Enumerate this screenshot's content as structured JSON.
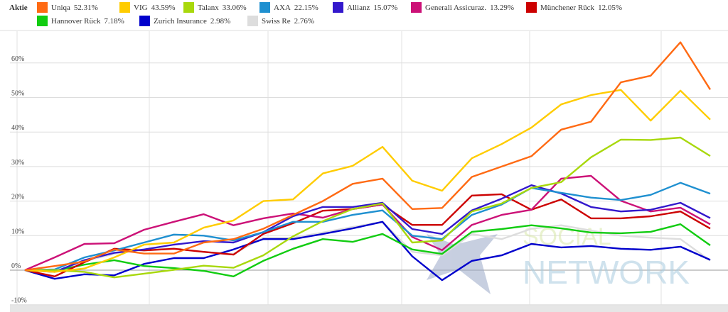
{
  "watermark": "BÖRSE SOCIAL NETWORK",
  "chart_data": {
    "type": "line",
    "title": "",
    "legend_title": "Aktie",
    "legend_position": "top",
    "xlabel": "",
    "ylabel": "",
    "ylim": [
      -10,
      70
    ],
    "y_ticks": [
      -10,
      0,
      10,
      20,
      30,
      40,
      50,
      60
    ],
    "y_tick_labels": [
      "-10%",
      "0%",
      "10%",
      "20%",
      "30%",
      "40%",
      "50%",
      "60%"
    ],
    "grid": true,
    "x": [
      0,
      1,
      2,
      3,
      4,
      5,
      6,
      7,
      8,
      9,
      10,
      11,
      12,
      13,
      14,
      15,
      16,
      17,
      18,
      19,
      20,
      21,
      22,
      23
    ],
    "series": [
      {
        "name": "Uniqa",
        "label": "52.31%",
        "color": "#ff6a13",
        "values": [
          0,
          1.2,
          2.5,
          6,
          4.8,
          4.8,
          8,
          9,
          12,
          16,
          20,
          25,
          26.5,
          17.7,
          18,
          27,
          30,
          33,
          40.7,
          43,
          54.4,
          56.3,
          66,
          52.31
        ]
      },
      {
        "name": "VIG",
        "label": "43.59%",
        "color": "#ffcc00",
        "values": [
          0,
          -0.5,
          0.5,
          3.7,
          7.4,
          8,
          12.3,
          14.4,
          20,
          20.5,
          28,
          30.2,
          35.7,
          25.9,
          23,
          32.4,
          36.5,
          41.3,
          48,
          50.7,
          52.2,
          43.3,
          52,
          43.59
        ]
      },
      {
        "name": "Talanx",
        "label": "33.06%",
        "color": "#a8d80c",
        "values": [
          0,
          0,
          -0.5,
          -2.1,
          -1,
          0.1,
          1.3,
          0.7,
          4.3,
          9.8,
          14.2,
          17.7,
          19.3,
          8,
          8.6,
          17,
          19.3,
          23.8,
          25.5,
          32.7,
          37.8,
          37.7,
          38.4,
          33.06
        ]
      },
      {
        "name": "AXA",
        "label": "22.15%",
        "color": "#1f90d0",
        "values": [
          0,
          0.2,
          3.7,
          5.7,
          8,
          10.3,
          10,
          8.6,
          11,
          14,
          14,
          16,
          17.3,
          10,
          9,
          16,
          19,
          23.8,
          22.4,
          21,
          20.3,
          21.8,
          25.3,
          22.15
        ]
      },
      {
        "name": "Allianz",
        "label": "15.07%",
        "color": "#3318cc",
        "values": [
          0,
          -0.5,
          2.9,
          5,
          6,
          7.4,
          8.4,
          8,
          11,
          15.6,
          18.3,
          18.3,
          19.5,
          11.9,
          10.5,
          17.3,
          20.7,
          24.6,
          22.2,
          18.3,
          17,
          17.5,
          19.5,
          15.07
        ]
      },
      {
        "name": "Generali Assicuraz.",
        "label": "13.29%",
        "color": "#cc1177",
        "values": [
          0,
          3.7,
          7.6,
          7.8,
          11.7,
          14,
          16.2,
          13,
          15,
          16.4,
          15.2,
          17.7,
          19,
          9.6,
          5.8,
          13.1,
          16,
          17.5,
          26.5,
          27.3,
          20.1,
          17,
          18.1,
          13.29
        ]
      },
      {
        "name": "Münchener Rück",
        "label": "12.05%",
        "color": "#cc0000",
        "values": [
          0,
          -1.8,
          2.3,
          6.2,
          5.7,
          6.2,
          5.3,
          4.5,
          10.5,
          13.6,
          17.2,
          17.7,
          19,
          13.1,
          13.1,
          21.6,
          22,
          17.5,
          20.5,
          15,
          15,
          15.6,
          17,
          12.05
        ]
      },
      {
        "name": "Hannover Rück",
        "label": "7.18%",
        "color": "#11cc11",
        "values": [
          0,
          -0.2,
          1.6,
          2.9,
          1.2,
          0.6,
          -0.2,
          -1.8,
          2.7,
          6.2,
          9,
          8.2,
          10.5,
          6,
          4.7,
          11.1,
          11.9,
          13,
          12.1,
          10.9,
          10.7,
          11.1,
          13.3,
          7.18
        ]
      },
      {
        "name": "Zurich Insurance",
        "label": "2.98%",
        "color": "#0000cc",
        "values": [
          0,
          -2.5,
          -1.2,
          -1.5,
          1.8,
          3.5,
          3.5,
          6,
          9,
          9,
          10.5,
          12.1,
          14,
          4,
          -2.9,
          2.7,
          4.3,
          7.6,
          6.6,
          7,
          6.2,
          5.9,
          6.8,
          2.98
        ]
      },
      {
        "name": "Swiss Re",
        "label": "2.76%",
        "color": "#dddddd",
        "values": [
          0,
          -0.5,
          2.6,
          4.7,
          6,
          6.3,
          5.3,
          4.7,
          9.4,
          9.4,
          10.9,
          12.5,
          14,
          5.3,
          4.3,
          10.5,
          9,
          12,
          13,
          11.5,
          10,
          9.4,
          9,
          2.76
        ]
      }
    ]
  }
}
